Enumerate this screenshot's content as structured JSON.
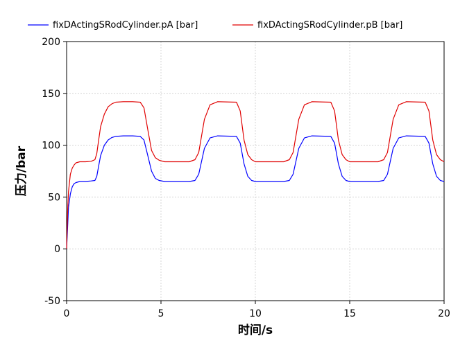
{
  "chart_data": {
    "type": "line",
    "title": "",
    "xlabel": "时间/s",
    "ylabel": "压力/bar",
    "xlim": [
      0,
      20
    ],
    "ylim": [
      -50,
      200
    ],
    "x_ticks": [
      0,
      5,
      10,
      15,
      20
    ],
    "y_ticks": [
      -50,
      0,
      50,
      100,
      150,
      200
    ],
    "grid": true,
    "legend_position": "top",
    "series": [
      {
        "name": "fixDActingSRodCylinder.pA [bar]",
        "color": "#0000ff",
        "x": [
          0,
          0.05,
          0.1,
          0.2,
          0.3,
          0.4,
          0.5,
          0.7,
          1.0,
          1.3,
          1.5,
          1.6,
          1.7,
          1.8,
          2.0,
          2.2,
          2.4,
          2.6,
          3.0,
          3.5,
          3.9,
          4.1,
          4.3,
          4.5,
          4.7,
          4.9,
          5.2,
          6.0,
          6.5,
          6.8,
          7.0,
          7.3,
          7.6,
          8.0,
          9.0,
          9.2,
          9.4,
          9.6,
          9.8,
          10.0,
          10.3,
          11.0,
          11.5,
          11.8,
          12.0,
          12.3,
          12.6,
          13.0,
          14.0,
          14.2,
          14.4,
          14.6,
          14.8,
          15.0,
          15.3,
          16.0,
          16.5,
          16.8,
          17.0,
          17.3,
          17.6,
          18.0,
          19.0,
          19.2,
          19.4,
          19.6,
          19.8,
          20.0
        ],
        "y": [
          0,
          20,
          40,
          53,
          60,
          63,
          64,
          65,
          65,
          65.5,
          66,
          70,
          80,
          90,
          100,
          105,
          107.5,
          108.5,
          109,
          109,
          108.5,
          105,
          90,
          75,
          68,
          66,
          65,
          65,
          65,
          66,
          72,
          97,
          107,
          109,
          108.5,
          102,
          82,
          70,
          66,
          65,
          65,
          65,
          65,
          66,
          72,
          97,
          107,
          109,
          108.5,
          102,
          82,
          70,
          66,
          65,
          65,
          65,
          65,
          66,
          72,
          97,
          107,
          109,
          108.5,
          102,
          82,
          70,
          66,
          65
        ]
      },
      {
        "name": "fixDActingSRodCylinder.pB [bar]",
        "color": "#e00000",
        "x": [
          0,
          0.05,
          0.1,
          0.2,
          0.3,
          0.4,
          0.5,
          0.7,
          1.0,
          1.3,
          1.5,
          1.6,
          1.7,
          1.8,
          2.0,
          2.2,
          2.4,
          2.6,
          3.0,
          3.5,
          3.9,
          4.1,
          4.3,
          4.5,
          4.7,
          4.9,
          5.2,
          6.0,
          6.5,
          6.8,
          7.0,
          7.3,
          7.6,
          8.0,
          9.0,
          9.2,
          9.4,
          9.6,
          9.8,
          10.0,
          10.3,
          11.0,
          11.5,
          11.8,
          12.0,
          12.3,
          12.6,
          13.0,
          14.0,
          14.2,
          14.4,
          14.6,
          14.8,
          15.0,
          15.3,
          16.0,
          16.5,
          16.8,
          17.0,
          17.3,
          17.6,
          18.0,
          19.0,
          19.2,
          19.4,
          19.6,
          19.8,
          20.0
        ],
        "y": [
          0,
          35,
          55,
          72,
          78,
          81,
          83,
          84,
          84,
          84.5,
          86,
          92,
          105,
          118,
          130,
          137,
          140,
          141.5,
          142,
          142,
          141.5,
          136,
          115,
          95,
          88,
          85.5,
          84,
          84,
          84,
          86,
          93,
          125,
          139,
          142,
          141.5,
          133,
          105,
          91,
          86,
          84,
          84,
          84,
          84,
          86,
          93,
          125,
          139,
          142,
          141.5,
          133,
          105,
          91,
          86,
          84,
          84,
          84,
          84,
          86,
          93,
          125,
          139,
          142,
          141.5,
          133,
          105,
          91,
          86,
          84
        ]
      }
    ]
  }
}
